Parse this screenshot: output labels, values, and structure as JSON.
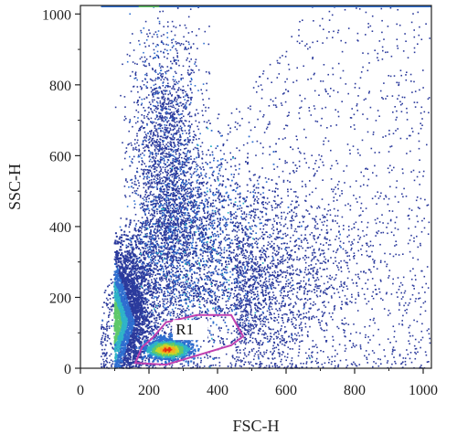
{
  "chart_data": {
    "type": "scatter",
    "xlabel": "FSC-H",
    "ylabel": "SSC-H",
    "xlim": [
      0,
      1024
    ],
    "ylim": [
      0,
      1024
    ],
    "xticks": [
      0,
      200,
      400,
      600,
      800,
      1000
    ],
    "yticks": [
      0,
      200,
      400,
      600,
      800,
      1000
    ],
    "x_tick_labels": [
      "0",
      "200",
      "400",
      "600",
      "800",
      "1000"
    ],
    "y_tick_labels": [
      "0",
      "200",
      "400",
      "600",
      "800",
      "1000"
    ],
    "grid": false,
    "color_scale": [
      "#2b3a9c",
      "#2f6fd0",
      "#2fb3c8",
      "#5fc96b",
      "#c8d82a",
      "#f0b020",
      "#e83010"
    ],
    "density_clusters": [
      {
        "center": [
          95,
          140
        ],
        "spread": [
          20,
          60
        ],
        "density": "high",
        "peak_color": "#5fc96b"
      },
      {
        "center": [
          140,
          280
        ],
        "spread": [
          55,
          110
        ],
        "density": "medium"
      },
      {
        "center": [
          250,
          800
        ],
        "spread": [
          55,
          160
        ],
        "density": "medium"
      },
      {
        "center": [
          320,
          320
        ],
        "spread": [
          140,
          160
        ],
        "density": "medium"
      },
      {
        "center": [
          255,
          55
        ],
        "spread": [
          30,
          15
        ],
        "density": "very high",
        "peak_color": "#e83010"
      },
      {
        "center": [
          500,
          500
        ],
        "spread": [
          220,
          260
        ],
        "density": "low"
      }
    ],
    "saturation_band": {
      "y": 1022,
      "x_range": [
        60,
        1024
      ]
    },
    "gates": [
      {
        "name": "R1",
        "label": "R1",
        "color": "#c040b0",
        "polygon": [
          [
            160,
            15
          ],
          [
            180,
            60
          ],
          [
            210,
            85
          ],
          [
            250,
            130
          ],
          [
            340,
            150
          ],
          [
            440,
            150
          ],
          [
            475,
            90
          ],
          [
            440,
            65
          ],
          [
            250,
            10
          ]
        ]
      }
    ]
  }
}
